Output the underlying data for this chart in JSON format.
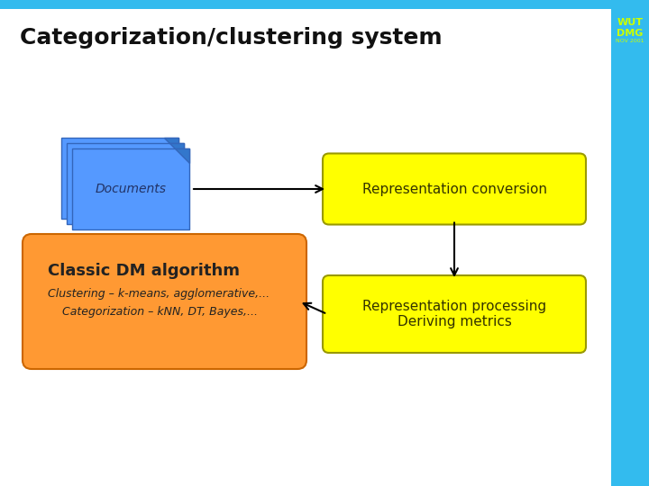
{
  "title": "Categorization/clustering system",
  "title_fontsize": 18,
  "bg_color": "#ffffff",
  "border_color": "#33bbee",
  "wut_color": "#ccff00",
  "wut_bg": "#33bbee",
  "doc_color": "#5599ff",
  "doc_color2": "#77aaff",
  "yellow_color": "#ffff00",
  "yellow_edge": "#999900",
  "orange_color": "#ff9933",
  "orange_edge": "#cc6600",
  "arrow_color": "#000000",
  "box1_label": "Documents",
  "box2_label": "Representation conversion",
  "box3_label": "Representation processing\nDeriving metrics",
  "box4_title": "Classic DM algorithm",
  "box4_line1": "Clustering – k-means, agglomerative,...",
  "box4_line2": "    Categorization – kNN, DT, Bayes,..."
}
